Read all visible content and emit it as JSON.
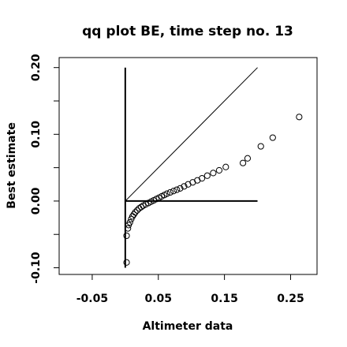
{
  "chart_data": {
    "type": "scatter",
    "title": "qq plot BE, time step no. 13",
    "xlabel": "Altimeter data",
    "ylabel": "Best estimate",
    "xlim": [
      -0.1,
      0.29
    ],
    "ylim": [
      -0.11,
      0.215
    ],
    "x_ticks": [
      -0.05,
      0.05,
      0.15,
      0.25
    ],
    "x_tick_labels": [
      "-0.05",
      "0.05",
      "0.15",
      "0.25"
    ],
    "y_ticks": [
      -0.1,
      0.0,
      0.1,
      0.2
    ],
    "y_tick_labels": [
      "-0.10",
      "0.00",
      "0.10",
      "0.20"
    ],
    "y_minor_ticks": [
      -0.05,
      0.05,
      0.15
    ],
    "grid": false,
    "reference_lines": {
      "diagonal": [
        [
          0,
          0
        ],
        [
          0.2,
          0.2
        ]
      ],
      "vertical": [
        [
          0,
          -0.1
        ],
        [
          0,
          0.2
        ]
      ],
      "horizontal": [
        [
          0,
          0
        ],
        [
          0.2,
          0
        ]
      ]
    },
    "points": [
      [
        0.002,
        -0.092
      ],
      [
        0.002,
        -0.052
      ],
      [
        0.004,
        -0.041
      ],
      [
        0.005,
        -0.036
      ],
      [
        0.007,
        -0.032
      ],
      [
        0.009,
        -0.027
      ],
      [
        0.011,
        -0.023
      ],
      [
        0.013,
        -0.02
      ],
      [
        0.015,
        -0.017
      ],
      [
        0.018,
        -0.014
      ],
      [
        0.021,
        -0.011
      ],
      [
        0.024,
        -0.009
      ],
      [
        0.027,
        -0.007
      ],
      [
        0.031,
        -0.005
      ],
      [
        0.035,
        -0.003
      ],
      [
        0.039,
        -0.001
      ],
      [
        0.043,
        0.001
      ],
      [
        0.047,
        0.003
      ],
      [
        0.051,
        0.005
      ],
      [
        0.055,
        0.007
      ],
      [
        0.059,
        0.009
      ],
      [
        0.063,
        0.011
      ],
      [
        0.068,
        0.013
      ],
      [
        0.073,
        0.015
      ],
      [
        0.078,
        0.017
      ],
      [
        0.083,
        0.019
      ],
      [
        0.089,
        0.022
      ],
      [
        0.095,
        0.025
      ],
      [
        0.102,
        0.028
      ],
      [
        0.109,
        0.031
      ],
      [
        0.116,
        0.034
      ],
      [
        0.124,
        0.038
      ],
      [
        0.133,
        0.042
      ],
      [
        0.142,
        0.046
      ],
      [
        0.152,
        0.051
      ],
      [
        0.178,
        0.057
      ],
      [
        0.185,
        0.064
      ],
      [
        0.205,
        0.082
      ],
      [
        0.223,
        0.095
      ],
      [
        0.263,
        0.126
      ]
    ]
  }
}
